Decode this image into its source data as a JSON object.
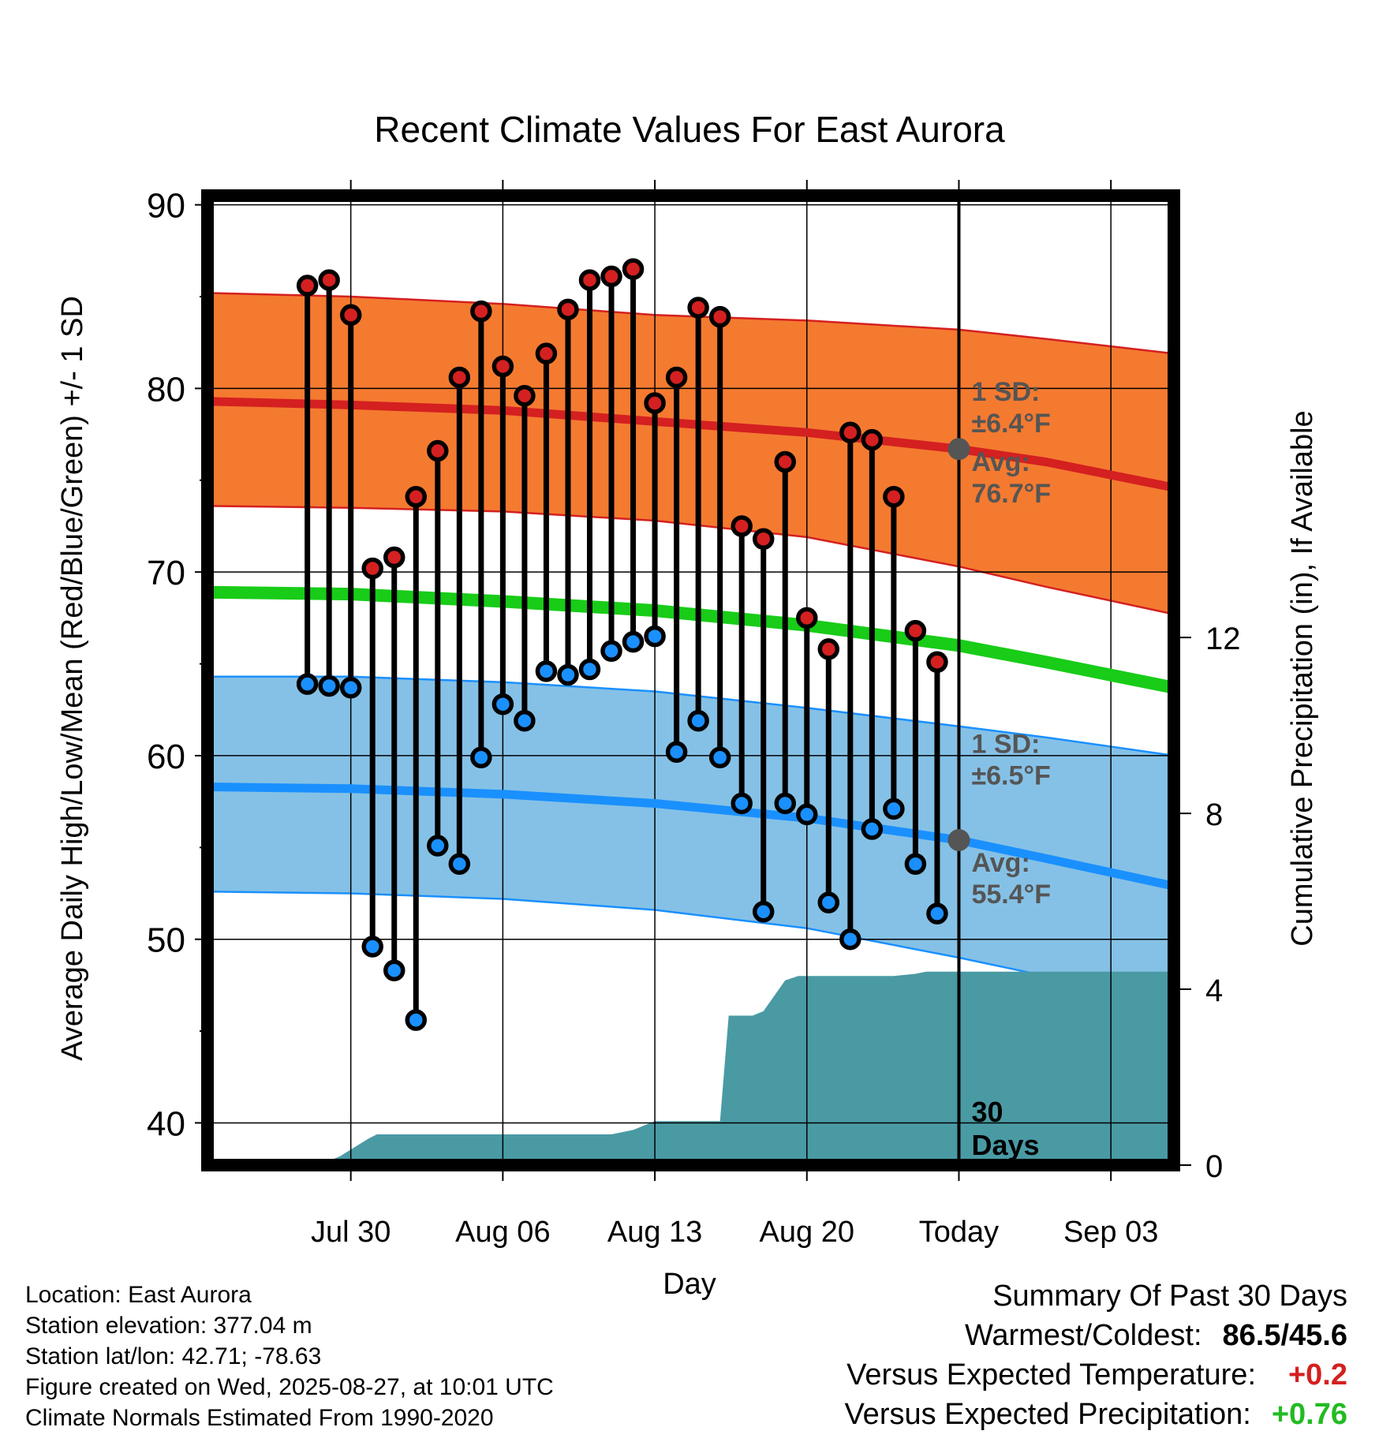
{
  "chart_data": {
    "type": "line",
    "title": "Recent Climate Values For East Aurora",
    "xlabel": "Day",
    "ylabel": "Average Daily High/Low/Mean (Red/Blue/Green) +/- 1 SD",
    "y2label": "Cumulative Precipitation (in), If Available",
    "ylim": [
      37.7,
      90.5
    ],
    "y2lim": [
      0,
      22.05
    ],
    "x_range_days": [
      -34.6,
      9.9
    ],
    "x_tick_labels": [
      {
        "day": -28,
        "label": "Jul 30"
      },
      {
        "day": -21,
        "label": "Aug 06"
      },
      {
        "day": -14,
        "label": "Aug 13"
      },
      {
        "day": -7,
        "label": "Aug 20"
      },
      {
        "day": 0,
        "label": "Today"
      },
      {
        "day": 7,
        "label": "Sep 03"
      }
    ],
    "y_ticks": [
      40,
      50,
      60,
      70,
      80,
      90
    ],
    "y2_ticks": [
      0,
      4,
      8,
      12
    ],
    "today_label": "30\nDays",
    "high_normal": {
      "days": [
        -34.6,
        -28,
        -21,
        -14,
        -7,
        0,
        4,
        9.9
      ],
      "mean": [
        79.3,
        79.1,
        78.8,
        78.2,
        77.6,
        76.7,
        76.0,
        74.6
      ],
      "upper": [
        85.2,
        85.0,
        84.6,
        84.0,
        83.7,
        83.2,
        82.7,
        81.9
      ],
      "lower": [
        73.6,
        73.5,
        73.3,
        72.8,
        71.9,
        70.3,
        69.2,
        67.7
      ]
    },
    "low_normal": {
      "days": [
        -34.6,
        -28,
        -21,
        -14,
        -7,
        0,
        4,
        9.9
      ],
      "mean": [
        58.3,
        58.2,
        57.9,
        57.4,
        56.6,
        55.4,
        54.4,
        52.9
      ],
      "upper": [
        64.3,
        64.3,
        64.0,
        63.5,
        62.6,
        61.6,
        61.0,
        60.0
      ],
      "lower": [
        52.6,
        52.5,
        52.2,
        51.6,
        50.6,
        49.0,
        48.0,
        46.9
      ]
    },
    "mean_normal": {
      "days": [
        -34.6,
        -28,
        -21,
        -14,
        -7,
        0,
        4,
        9.9
      ],
      "values": [
        68.9,
        68.8,
        68.4,
        67.9,
        67.1,
        66.0,
        65.1,
        63.7
      ]
    },
    "today_markers": {
      "high": 76.7,
      "low": 55.4
    },
    "annotations": {
      "high_sd": "1 SD:\n±6.4°F",
      "high_avg": "Avg:\n76.7°F",
      "low_sd": "1 SD:\n±6.5°F",
      "low_avg": "Avg:\n55.4°F"
    },
    "observed": {
      "days": [
        -30,
        -29,
        -28,
        -27,
        -26,
        -25,
        -24,
        -23,
        -22,
        -21,
        -20,
        -19,
        -18,
        -17,
        -16,
        -15,
        -14,
        -13,
        -12,
        -11,
        -10,
        -9,
        -8,
        -7,
        -6,
        -5,
        -4,
        -3,
        -2,
        -1
      ],
      "high": [
        85.6,
        85.9,
        84.0,
        70.2,
        70.8,
        74.1,
        76.6,
        80.6,
        84.2,
        81.2,
        79.6,
        81.9,
        84.3,
        85.9,
        86.1,
        86.5,
        79.2,
        80.6,
        84.4,
        83.9,
        72.5,
        71.8,
        76.0,
        67.5,
        65.8,
        77.6,
        77.2,
        74.1,
        66.8,
        65.1
      ],
      "low": [
        63.9,
        63.8,
        63.7,
        49.6,
        48.3,
        45.6,
        55.1,
        54.1,
        59.9,
        62.8,
        61.9,
        64.6,
        64.4,
        64.7,
        65.7,
        66.2,
        66.5,
        60.2,
        61.9,
        59.9,
        57.4,
        51.5,
        57.4,
        56.8,
        52.0,
        50.0,
        56.0,
        57.1,
        54.1,
        51.4
      ]
    },
    "precipitation": {
      "days": [
        -31.3,
        -29.5,
        -28.5,
        -27.2,
        -26.8,
        -18,
        -16,
        -15,
        -14,
        -13,
        -11.9,
        -11,
        -10.6,
        -9.5,
        -9,
        -8,
        -7.4,
        -5,
        -3,
        -2,
        -1.5,
        9.9
      ],
      "values": [
        0,
        0,
        0.2,
        0.6,
        0.7,
        0.7,
        0.7,
        0.8,
        1.0,
        1.0,
        1.0,
        1.0,
        3.4,
        3.4,
        3.5,
        4.2,
        4.3,
        4.3,
        4.3,
        4.35,
        4.4,
        4.4
      ]
    }
  },
  "footer": {
    "lines": [
      "Location: East Aurora",
      "Station elevation: 377.04 m",
      "Station lat/lon: 42.71; -78.63",
      "Figure created on Wed, 2025-08-27, at 10:01 UTC",
      "Climate Normals Estimated From 1990-2020"
    ]
  },
  "summary": {
    "title": "Summary Of Past 30 Days",
    "rows": [
      {
        "label": "Warmest/Coldest:",
        "value": "86.5/45.6",
        "color": "#000000"
      },
      {
        "label": "Versus Expected Temperature:",
        "value": "+0.2",
        "color": "#d42020"
      },
      {
        "label": "Versus Expected Precipitation:",
        "value": "+0.76",
        "color": "#22bb22"
      }
    ]
  },
  "colors": {
    "high_band": "#f47a30",
    "high_line": "#d42020",
    "low_band": "#85c1e6",
    "low_line": "#1a90ff",
    "mean_line": "#18cc18",
    "precip": "#4a9aa4",
    "marker": "#555555",
    "annotation": "#555555"
  }
}
